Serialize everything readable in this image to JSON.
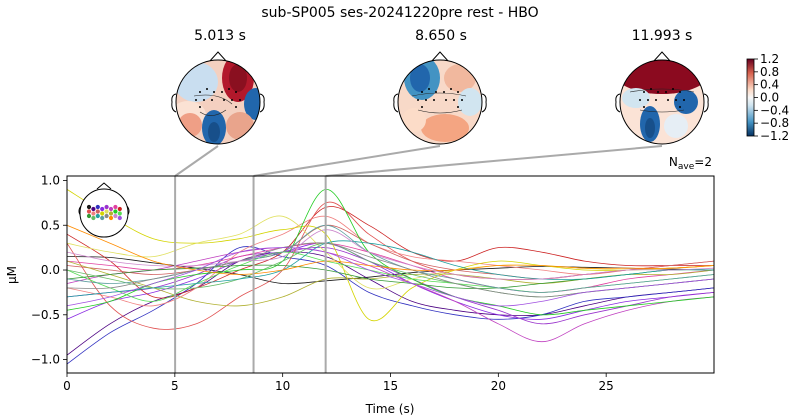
{
  "figure": {
    "title": "sub-SP005 ses-20241220pre rest - HBO"
  },
  "topomaps": [
    {
      "label": "5.013 s",
      "time": 5.013
    },
    {
      "label": "8.650 s",
      "time": 8.65
    },
    {
      "label": "11.993 s",
      "time": 11.993
    }
  ],
  "colorbar": {
    "ticks": [
      "1.2",
      "0.8",
      "0.4",
      "0.0",
      "−0.4",
      "−0.8",
      "−1.2"
    ],
    "tick_values": [
      1.2,
      0.8,
      0.4,
      0.0,
      -0.4,
      -0.8,
      -1.2
    ],
    "colors": {
      "high": "#67001f",
      "mid": "#f7f7f7",
      "low": "#053061"
    }
  },
  "annotation": {
    "nave_prefix": "N",
    "nave_sub": "ave",
    "nave_value": "=2"
  },
  "chart_data": {
    "type": "line",
    "xlabel": "Time (s)",
    "ylabel": "µM",
    "xlim": [
      0,
      30
    ],
    "ylim": [
      -1.15,
      1.05
    ],
    "xticks": [
      0,
      5,
      10,
      15,
      20,
      25
    ],
    "yticks": [
      -1.0,
      -0.5,
      0.0,
      0.5,
      1.0
    ],
    "tick_labels_x": [
      "0",
      "5",
      "10",
      "15",
      "20",
      "25"
    ],
    "tick_labels_y": [
      "−1.0",
      "−0.5",
      "0.0",
      "0.5",
      "1.0"
    ],
    "markers": [
      5.013,
      8.65,
      11.993
    ],
    "x": [
      0,
      2,
      4,
      6,
      8,
      10,
      12,
      14,
      16,
      18,
      20,
      22,
      24,
      26,
      28,
      30
    ],
    "series": [
      {
        "color": "#1a1a1a",
        "values": [
          0.15,
          0.14,
          0.08,
          0.02,
          -0.05,
          -0.15,
          -0.12,
          -0.08,
          -0.03,
          0.0,
          0.02,
          0.04,
          0.03,
          0.02,
          0.01,
          0.0
        ]
      },
      {
        "color": "#4b0082",
        "values": [
          -0.95,
          -0.6,
          -0.35,
          -0.2,
          0.1,
          0.2,
          0.15,
          -0.1,
          -0.35,
          -0.45,
          -0.5,
          -0.5,
          -0.4,
          -0.3,
          -0.25,
          -0.2
        ]
      },
      {
        "color": "#3030c0",
        "values": [
          -1.05,
          -0.7,
          -0.45,
          -0.15,
          0.25,
          0.15,
          0.05,
          -0.25,
          -0.4,
          -0.5,
          -0.55,
          -0.5,
          -0.35,
          -0.3,
          -0.25,
          -0.2
        ]
      },
      {
        "color": "#8a2be2",
        "values": [
          -0.55,
          -0.35,
          -0.25,
          -0.1,
          0.1,
          0.2,
          0.3,
          0.1,
          -0.15,
          -0.35,
          -0.5,
          -0.55,
          -0.45,
          -0.35,
          -0.3,
          -0.25
        ]
      },
      {
        "color": "#9932cc",
        "values": [
          -0.3,
          -0.25,
          -0.2,
          -0.05,
          0.15,
          0.2,
          0.25,
          0.1,
          -0.1,
          -0.3,
          -0.45,
          -0.6,
          -0.5,
          -0.4,
          -0.3,
          -0.25
        ]
      },
      {
        "color": "#c040c0",
        "values": [
          -0.15,
          -0.05,
          0.0,
          0.1,
          0.2,
          0.25,
          0.2,
          0.05,
          -0.15,
          -0.35,
          -0.6,
          -0.8,
          -0.6,
          -0.45,
          -0.35,
          -0.3
        ]
      },
      {
        "color": "#e040a0",
        "values": [
          0.1,
          0.05,
          0.0,
          0.05,
          0.15,
          0.25,
          0.3,
          0.2,
          0.05,
          -0.1,
          -0.2,
          -0.25,
          -0.2,
          -0.1,
          -0.05,
          0.0
        ]
      },
      {
        "color": "#cc2222",
        "values": [
          0.4,
          0.1,
          -0.3,
          -0.2,
          0.0,
          0.2,
          0.7,
          0.5,
          0.2,
          0.1,
          0.25,
          0.2,
          0.1,
          0.05,
          0.05,
          0.05
        ]
      },
      {
        "color": "#e05050",
        "values": [
          0.3,
          -0.4,
          -0.65,
          -0.6,
          -0.3,
          0.0,
          0.75,
          0.4,
          0.1,
          -0.05,
          -0.1,
          -0.1,
          -0.05,
          0.0,
          0.02,
          0.05
        ]
      },
      {
        "color": "#f08080",
        "values": [
          -0.2,
          -0.3,
          -0.4,
          -0.2,
          0.2,
          0.4,
          0.6,
          0.3,
          0.15,
          0.1,
          0.05,
          0.0,
          -0.05,
          0.0,
          0.05,
          0.1
        ]
      },
      {
        "color": "#d06060",
        "values": [
          0.05,
          0.0,
          -0.05,
          0.0,
          0.1,
          0.2,
          0.5,
          0.3,
          0.1,
          0.0,
          -0.05,
          -0.1,
          -0.05,
          0.0,
          0.05,
          0.1
        ]
      },
      {
        "color": "#d4d400",
        "values": [
          0.9,
          0.6,
          0.35,
          0.3,
          0.35,
          0.45,
          0.4,
          -0.55,
          -0.2,
          0.0,
          0.1,
          0.05,
          0.0,
          0.0,
          0.02,
          0.05
        ]
      },
      {
        "color": "#e0e060",
        "values": [
          0.3,
          0.2,
          0.15,
          0.3,
          0.4,
          0.6,
          0.2,
          -0.2,
          -0.1,
          0.0,
          0.05,
          0.05,
          0.02,
          0.0,
          0.02,
          0.05
        ]
      },
      {
        "color": "#b0b030",
        "values": [
          0.1,
          -0.05,
          -0.2,
          -0.35,
          -0.4,
          -0.3,
          -0.1,
          -0.1,
          -0.05,
          -0.05,
          -0.1,
          -0.15,
          -0.1,
          -0.05,
          -0.05,
          0.0
        ]
      },
      {
        "color": "#22cc22",
        "values": [
          -0.45,
          -0.35,
          -0.15,
          -0.05,
          0.0,
          0.1,
          0.9,
          0.2,
          -0.1,
          -0.3,
          -0.4,
          -0.5,
          -0.45,
          -0.4,
          -0.35,
          -0.3
        ]
      },
      {
        "color": "#55dd55",
        "values": [
          0.0,
          -0.2,
          -0.35,
          -0.15,
          0.05,
          0.2,
          0.1,
          0.0,
          -0.1,
          -0.15,
          -0.2,
          -0.25,
          -0.2,
          -0.15,
          -0.1,
          -0.05
        ]
      },
      {
        "color": "#339933",
        "values": [
          -0.1,
          -0.05,
          0.0,
          0.02,
          0.05,
          0.05,
          0.0,
          -0.1,
          -0.15,
          -0.2,
          -0.2,
          -0.15,
          -0.1,
          -0.05,
          0.0,
          0.0
        ]
      },
      {
        "color": "#66bb66",
        "values": [
          0.0,
          -0.1,
          -0.2,
          -0.2,
          -0.1,
          0.1,
          0.3,
          0.1,
          -0.05,
          -0.15,
          -0.25,
          -0.3,
          -0.25,
          -0.2,
          -0.15,
          -0.1
        ]
      },
      {
        "color": "#20a0a0",
        "values": [
          -0.3,
          -0.25,
          -0.2,
          -0.15,
          -0.1,
          0.0,
          0.3,
          0.3,
          0.2,
          0.05,
          -0.05,
          -0.1,
          -0.1,
          -0.05,
          0.0,
          0.0
        ]
      },
      {
        "color": "#5f9ea0",
        "values": [
          -0.1,
          -0.15,
          -0.1,
          0.0,
          0.1,
          0.2,
          0.5,
          0.2,
          0.0,
          -0.1,
          -0.2,
          -0.25,
          -0.2,
          -0.15,
          -0.1,
          -0.05
        ]
      },
      {
        "color": "#888888",
        "values": [
          -0.2,
          -0.2,
          -0.1,
          0.0,
          0.1,
          0.25,
          0.3,
          0.15,
          0.0,
          -0.15,
          -0.25,
          -0.3,
          -0.25,
          -0.2,
          -0.15,
          -0.1
        ]
      },
      {
        "color": "#ff8c00",
        "values": [
          0.5,
          0.3,
          0.1,
          0.0,
          -0.05,
          0.0,
          0.1,
          0.05,
          0.0,
          0.0,
          0.05,
          0.05,
          0.02,
          0.02,
          0.02,
          0.05
        ]
      },
      {
        "color": "#cc88cc",
        "values": [
          0.2,
          0.1,
          0.05,
          0.05,
          0.1,
          0.15,
          0.45,
          0.2,
          0.05,
          -0.05,
          -0.1,
          -0.1,
          -0.05,
          0.0,
          0.0,
          0.02
        ]
      },
      {
        "color": "#a050e0",
        "values": [
          -0.4,
          -0.3,
          -0.15,
          0.0,
          0.2,
          0.25,
          0.2,
          0.0,
          -0.15,
          -0.3,
          -0.4,
          -0.35,
          -0.25,
          -0.2,
          -0.15,
          -0.1
        ]
      }
    ]
  }
}
